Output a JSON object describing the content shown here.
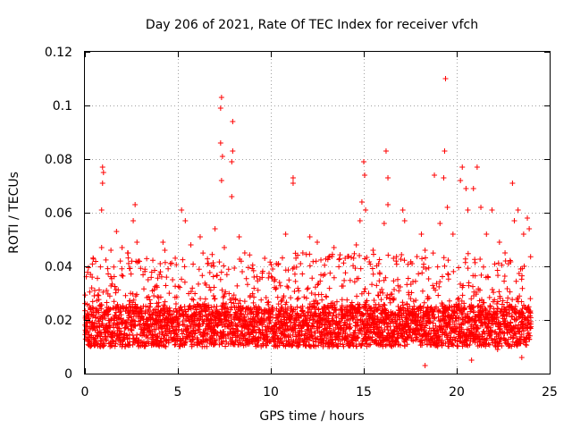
{
  "chart_data": {
    "type": "scatter",
    "title": "Day 206 of 2021, Rate Of TEC Index for receiver vfch",
    "xlabel": "GPS time / hours",
    "ylabel": "ROTI / TECUs",
    "xlim": [
      0,
      25
    ],
    "ylim": [
      0,
      0.12
    ],
    "xticks": [
      0,
      5,
      10,
      15,
      20,
      25
    ],
    "xtick_labels": [
      "0",
      "5",
      "10",
      "15",
      "20",
      "25"
    ],
    "yticks": [
      0,
      0.02,
      0.04,
      0.06,
      0.08,
      0.1,
      0.12
    ],
    "ytick_labels": [
      "0",
      "0.02",
      "0.04",
      "0.06",
      "0.08",
      "0.1",
      "0.12"
    ],
    "grid": true,
    "marker": "plus",
    "series": [
      {
        "name": "ROTI",
        "color": "#ff0000",
        "points": [
          [
            0.3,
            0.037
          ],
          [
            0.5,
            0.029
          ],
          [
            0.9,
            0.047
          ],
          [
            0.9,
            0.061
          ],
          [
            0.95,
            0.071
          ],
          [
            0.95,
            0.077
          ],
          [
            1.0,
            0.075
          ],
          [
            1.4,
            0.046
          ],
          [
            1.7,
            0.053
          ],
          [
            2.0,
            0.047
          ],
          [
            2.3,
            0.045
          ],
          [
            2.7,
            0.063
          ],
          [
            2.6,
            0.057
          ],
          [
            2.8,
            0.049
          ],
          [
            3.4,
            0.035
          ],
          [
            4.2,
            0.049
          ],
          [
            4.3,
            0.046
          ],
          [
            4.6,
            0.041
          ],
          [
            5.2,
            0.061
          ],
          [
            5.4,
            0.057
          ],
          [
            5.7,
            0.048
          ],
          [
            6.2,
            0.051
          ],
          [
            6.6,
            0.041
          ],
          [
            7.0,
            0.054
          ],
          [
            7.3,
            0.086
          ],
          [
            7.3,
            0.099
          ],
          [
            7.35,
            0.103
          ],
          [
            7.4,
            0.081
          ],
          [
            7.35,
            0.072
          ],
          [
            7.5,
            0.047
          ],
          [
            7.9,
            0.066
          ],
          [
            7.95,
            0.094
          ],
          [
            7.95,
            0.083
          ],
          [
            7.9,
            0.079
          ],
          [
            8.3,
            0.051
          ],
          [
            8.6,
            0.045
          ],
          [
            9.1,
            0.036
          ],
          [
            10.1,
            0.039
          ],
          [
            10.3,
            0.041
          ],
          [
            10.8,
            0.052
          ],
          [
            11.2,
            0.071
          ],
          [
            11.2,
            0.073
          ],
          [
            11.6,
            0.041
          ],
          [
            12.1,
            0.051
          ],
          [
            12.5,
            0.049
          ],
          [
            12.9,
            0.037
          ],
          [
            13.4,
            0.047
          ],
          [
            14.0,
            0.043
          ],
          [
            14.6,
            0.048
          ],
          [
            14.8,
            0.057
          ],
          [
            14.9,
            0.064
          ],
          [
            15.0,
            0.079
          ],
          [
            15.05,
            0.074
          ],
          [
            15.1,
            0.061
          ],
          [
            15.5,
            0.046
          ],
          [
            15.8,
            0.041
          ],
          [
            16.1,
            0.056
          ],
          [
            16.2,
            0.083
          ],
          [
            16.3,
            0.073
          ],
          [
            16.3,
            0.063
          ],
          [
            16.6,
            0.043
          ],
          [
            17.1,
            0.061
          ],
          [
            17.2,
            0.057
          ],
          [
            17.6,
            0.041
          ],
          [
            18.1,
            0.052
          ],
          [
            18.3,
            0.046
          ],
          [
            18.8,
            0.074
          ],
          [
            19.1,
            0.056
          ],
          [
            19.3,
            0.073
          ],
          [
            19.35,
            0.083
          ],
          [
            19.4,
            0.11
          ],
          [
            19.5,
            0.062
          ],
          [
            19.8,
            0.052
          ],
          [
            20.2,
            0.072
          ],
          [
            20.3,
            0.077
          ],
          [
            20.5,
            0.069
          ],
          [
            20.6,
            0.061
          ],
          [
            20.9,
            0.069
          ],
          [
            21.1,
            0.077
          ],
          [
            21.3,
            0.062
          ],
          [
            21.6,
            0.052
          ],
          [
            21.9,
            0.061
          ],
          [
            22.3,
            0.049
          ],
          [
            22.6,
            0.045
          ],
          [
            23.0,
            0.071
          ],
          [
            23.1,
            0.057
          ],
          [
            23.3,
            0.061
          ],
          [
            23.6,
            0.052
          ],
          [
            23.8,
            0.058
          ],
          [
            23.9,
            0.054
          ],
          [
            0.2,
            0.012
          ],
          [
            2.3,
            0.011
          ],
          [
            4.4,
            0.012
          ],
          [
            6.8,
            0.011
          ],
          [
            9.3,
            0.013
          ],
          [
            11.8,
            0.012
          ],
          [
            14.3,
            0.011
          ],
          [
            16.7,
            0.012
          ],
          [
            18.3,
            0.003
          ],
          [
            20.8,
            0.005
          ],
          [
            22.2,
            0.009
          ],
          [
            23.5,
            0.006
          ]
        ],
        "density_bands": [
          {
            "hour_range": [
              0,
              24
            ],
            "core_range": [
              0.01,
              0.025
            ],
            "upper_range": [
              0.025,
              0.045
            ]
          }
        ]
      }
    ]
  }
}
